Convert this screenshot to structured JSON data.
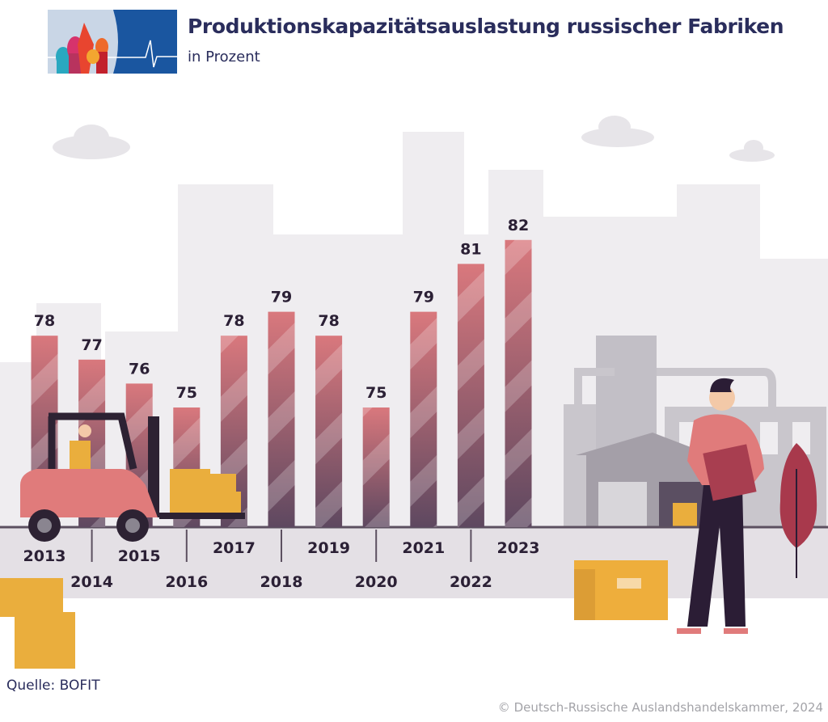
{
  "header": {
    "title": "Produktionskapazitätsauslastung russischer Fabriken",
    "subtitle": "in Prozent",
    "logo_icon": "onion-domes-heartbeat-logo"
  },
  "footer": {
    "source": "Quelle: BOFIT",
    "copyright": "© Deutsch-Russische Auslandshandelskammer, 2024"
  },
  "chart_data": {
    "type": "bar",
    "title": "Produktionskapazitätsauslastung russischer Fabriken",
    "subtitle": "in Prozent",
    "categories": [
      "2013",
      "2014",
      "2015",
      "2016",
      "2017",
      "2018",
      "2019",
      "2020",
      "2021",
      "2022",
      "2023"
    ],
    "values": [
      78,
      77,
      76,
      75,
      78,
      79,
      78,
      75,
      79,
      81,
      82
    ],
    "data_labels": [
      "78",
      "77",
      "76",
      "75",
      "78",
      "79",
      "78",
      "75",
      "79",
      "81",
      "82"
    ],
    "ylim": [
      70,
      83
    ],
    "grid": false,
    "legend": "none",
    "colors": {
      "bar_top": "#d9787d",
      "bar_bottom": "#5e4860",
      "text": "#2b2035",
      "title": "#2a2d5c"
    }
  }
}
